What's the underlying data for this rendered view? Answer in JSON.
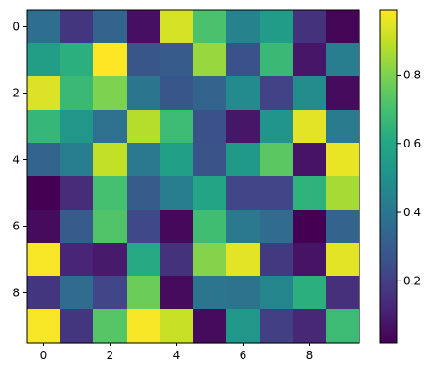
{
  "chart_data": {
    "type": "heatmap",
    "title": "",
    "xlabel": "",
    "ylabel": "",
    "x_ticks": [
      "0",
      "2",
      "4",
      "6",
      "8"
    ],
    "y_ticks": [
      "0",
      "2",
      "4",
      "6",
      "8"
    ],
    "colorbar_ticks": [
      "0.2",
      "0.4",
      "0.6",
      "0.8"
    ],
    "colormap": "viridis",
    "value_range": [
      0.02,
      0.99
    ],
    "grid": false,
    "rows": 10,
    "cols": 10,
    "values": [
      [
        0.37,
        0.17,
        0.33,
        0.06,
        0.93,
        0.71,
        0.45,
        0.55,
        0.16,
        0.03
      ],
      [
        0.56,
        0.63,
        0.99,
        0.28,
        0.3,
        0.84,
        0.26,
        0.67,
        0.08,
        0.43
      ],
      [
        0.94,
        0.67,
        0.8,
        0.4,
        0.28,
        0.33,
        0.48,
        0.21,
        0.49,
        0.05
      ],
      [
        0.66,
        0.53,
        0.38,
        0.88,
        0.68,
        0.26,
        0.08,
        0.52,
        0.95,
        0.42
      ],
      [
        0.33,
        0.43,
        0.9,
        0.41,
        0.57,
        0.27,
        0.54,
        0.74,
        0.07,
        0.96
      ],
      [
        0.02,
        0.14,
        0.7,
        0.3,
        0.43,
        0.59,
        0.22,
        0.22,
        0.64,
        0.86
      ],
      [
        0.05,
        0.3,
        0.72,
        0.23,
        0.04,
        0.69,
        0.41,
        0.36,
        0.02,
        0.33
      ],
      [
        0.98,
        0.12,
        0.09,
        0.61,
        0.16,
        0.81,
        0.95,
        0.18,
        0.07,
        0.95
      ],
      [
        0.17,
        0.36,
        0.22,
        0.77,
        0.05,
        0.4,
        0.39,
        0.46,
        0.63,
        0.15
      ],
      [
        0.98,
        0.17,
        0.73,
        0.98,
        0.91,
        0.05,
        0.53,
        0.2,
        0.13,
        0.68
      ]
    ]
  }
}
